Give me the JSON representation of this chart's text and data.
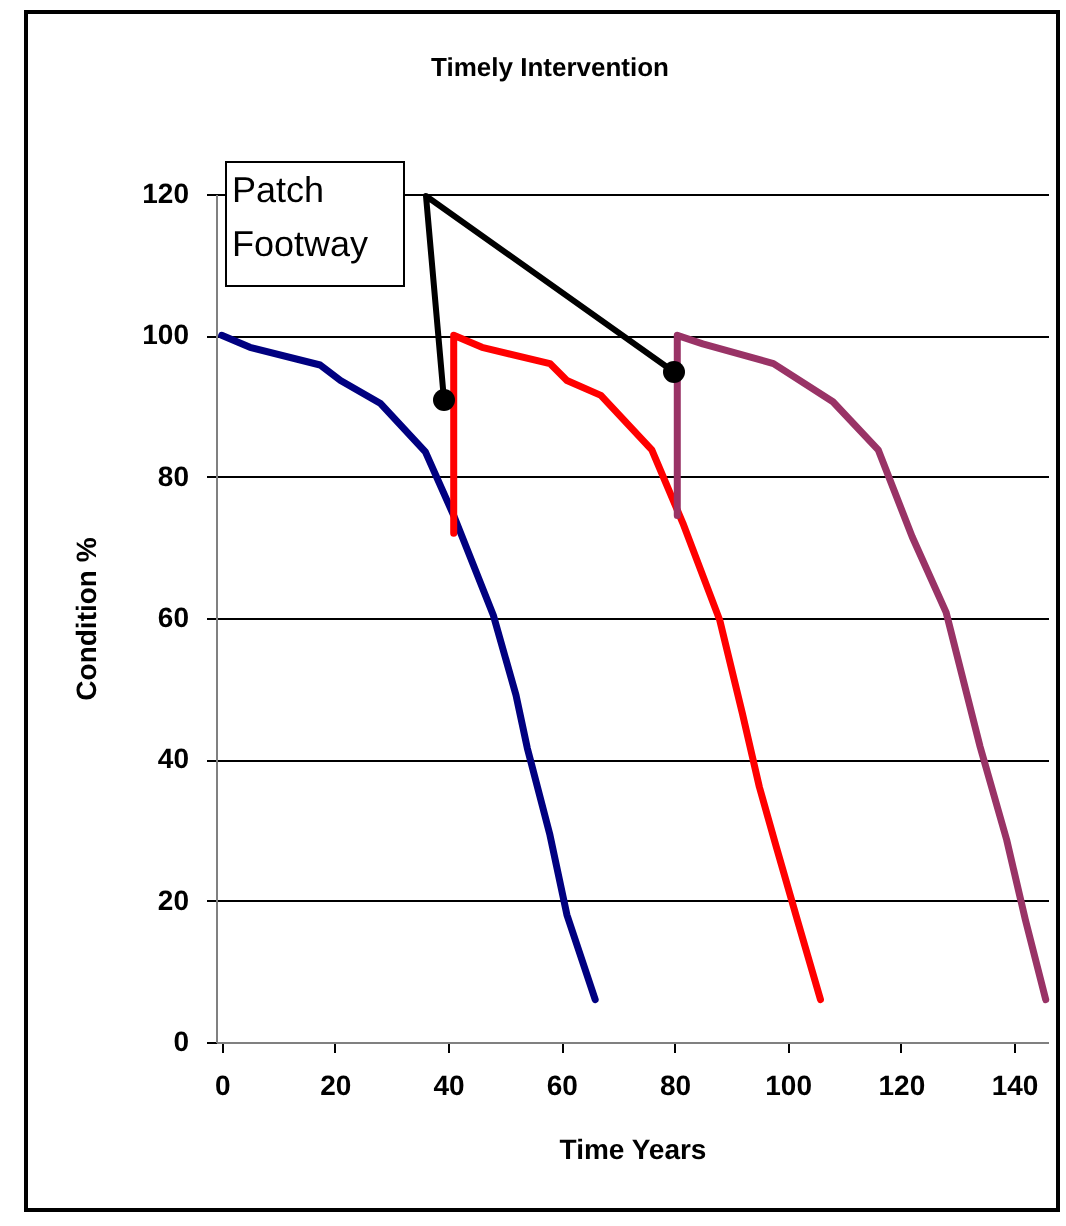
{
  "chart_data": {
    "type": "line",
    "title": "Timely Intervention",
    "xlabel": "Time Years",
    "ylabel": "Condition %",
    "annotations": [
      "Patch Footway"
    ],
    "xlim": [
      -1,
      146
    ],
    "xticks": [
      0,
      20,
      40,
      60,
      80,
      100,
      120,
      140
    ],
    "ylim": [
      0,
      120
    ],
    "yticks": [
      0,
      20,
      40,
      60,
      80,
      100,
      120
    ],
    "grid": "y",
    "legend": false,
    "marker": "none",
    "line_style": "solid",
    "series": [
      {
        "color": "#000080",
        "x": [
          0,
          5,
          17.4,
          21,
          28,
          36,
          41,
          48,
          52,
          54,
          58,
          61,
          66
        ],
        "values": [
          100,
          98.3,
          95.8,
          93.6,
          90.4,
          83.5,
          74.5,
          60.4,
          49.1,
          41.6,
          29.3,
          18,
          6
        ]
      },
      {
        "color": "#ff0000",
        "x": [
          41,
          41,
          46,
          58,
          61,
          67,
          76,
          81.5,
          88,
          92,
          95,
          98,
          101.7,
          105.8
        ],
        "values": [
          72,
          100,
          98.3,
          96,
          93.6,
          91.5,
          83.8,
          73.4,
          59.7,
          46.5,
          36.1,
          27.6,
          17.3,
          6
        ]
      },
      {
        "color": "#993366",
        "x": [
          80.5,
          80.5,
          85,
          97.5,
          108,
          116,
          122,
          128,
          134,
          138.7,
          142,
          145.6
        ],
        "values": [
          74.5,
          100,
          98.8,
          96,
          90.6,
          83.8,
          71.5,
          60.8,
          41.8,
          28.6,
          17.3,
          6
        ]
      }
    ]
  }
}
